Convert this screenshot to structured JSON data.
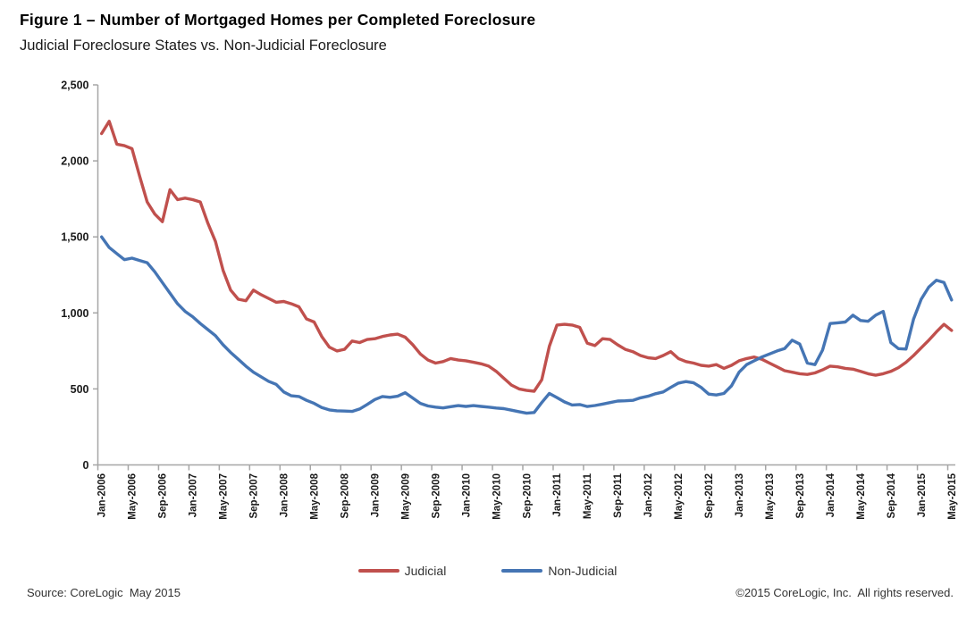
{
  "figure": {
    "title": "Figure 1 – Number of Mortgaged Homes per Completed Foreclosure",
    "subtitle": "Judicial Foreclosure States vs. Non-Judicial Foreclosure"
  },
  "footer": {
    "source": "Source: CoreLogic  May 2015",
    "copyright": "©2015 CoreLogic, Inc.  All rights reserved."
  },
  "chart_data": {
    "type": "line",
    "title": "Figure 1 – Number of Mortgaged Homes per Completed Foreclosure",
    "subtitle": "Judicial Foreclosure States vs. Non-Judicial Foreclosure",
    "xlabel": "",
    "ylabel": "",
    "ylim": [
      0,
      2500
    ],
    "y_tick_values": [
      0,
      500,
      1000,
      1500,
      2000,
      2500
    ],
    "y_tick_labels": [
      "0",
      "500",
      "1,000",
      "1,500",
      "2,000",
      "2,500"
    ],
    "x_tick_every_months": 4,
    "x_tick_labels": [
      "Jan-2006",
      "May-2006",
      "Sep-2006",
      "Jan-2007",
      "May-2007",
      "Sep-2007",
      "Jan-2008",
      "May-2008",
      "Sep-2008",
      "Jan-2009",
      "May-2009",
      "Sep-2009",
      "Jan-2010",
      "May-2010",
      "Sep-2010",
      "Jan-2011",
      "May-2011",
      "Sep-2011",
      "Jan-2012",
      "May-2012",
      "Sep-2012",
      "Jan-2013",
      "May-2013",
      "Sep-2013",
      "Jan-2014",
      "May-2014",
      "Sep-2014",
      "Jan-2015",
      "May-2015"
    ],
    "grid": false,
    "legend_position": "bottom-center",
    "axis_color": "#a6a6a6",
    "tick_label_color": "#1a1a1a",
    "categories": [
      "Jan-2006",
      "Feb-2006",
      "Mar-2006",
      "Apr-2006",
      "May-2006",
      "Jun-2006",
      "Jul-2006",
      "Aug-2006",
      "Sep-2006",
      "Oct-2006",
      "Nov-2006",
      "Dec-2006",
      "Jan-2007",
      "Feb-2007",
      "Mar-2007",
      "Apr-2007",
      "May-2007",
      "Jun-2007",
      "Jul-2007",
      "Aug-2007",
      "Sep-2007",
      "Oct-2007",
      "Nov-2007",
      "Dec-2007",
      "Jan-2008",
      "Feb-2008",
      "Mar-2008",
      "Apr-2008",
      "May-2008",
      "Jun-2008",
      "Jul-2008",
      "Aug-2008",
      "Sep-2008",
      "Oct-2008",
      "Nov-2008",
      "Dec-2008",
      "Jan-2009",
      "Feb-2009",
      "Mar-2009",
      "Apr-2009",
      "May-2009",
      "Jun-2009",
      "Jul-2009",
      "Aug-2009",
      "Sep-2009",
      "Oct-2009",
      "Nov-2009",
      "Dec-2009",
      "Jan-2010",
      "Feb-2010",
      "Mar-2010",
      "Apr-2010",
      "May-2010",
      "Jun-2010",
      "Jul-2010",
      "Aug-2010",
      "Sep-2010",
      "Oct-2010",
      "Nov-2010",
      "Dec-2010",
      "Jan-2011",
      "Feb-2011",
      "Mar-2011",
      "Apr-2011",
      "May-2011",
      "Jun-2011",
      "Jul-2011",
      "Aug-2011",
      "Sep-2011",
      "Oct-2011",
      "Nov-2011",
      "Dec-2011",
      "Jan-2012",
      "Feb-2012",
      "Mar-2012",
      "Apr-2012",
      "May-2012",
      "Jun-2012",
      "Jul-2012",
      "Aug-2012",
      "Sep-2012",
      "Oct-2012",
      "Nov-2012",
      "Dec-2012",
      "Jan-2013",
      "Feb-2013",
      "Mar-2013",
      "Apr-2013",
      "May-2013",
      "Jun-2013",
      "Jul-2013",
      "Aug-2013",
      "Sep-2013",
      "Oct-2013",
      "Nov-2013",
      "Dec-2013",
      "Jan-2014",
      "Feb-2014",
      "Mar-2014",
      "Apr-2014",
      "May-2014",
      "Jun-2014",
      "Jul-2014",
      "Aug-2014",
      "Sep-2014",
      "Oct-2014",
      "Nov-2014",
      "Dec-2014",
      "Jan-2015",
      "Feb-2015",
      "Mar-2015",
      "Apr-2015",
      "May-2015"
    ],
    "series": [
      {
        "name": "Judicial",
        "color": "#c0504d",
        "values": [
          2180,
          2260,
          2110,
          2100,
          2080,
          1900,
          1730,
          1650,
          1600,
          1810,
          1745,
          1755,
          1745,
          1730,
          1590,
          1470,
          1280,
          1150,
          1090,
          1080,
          1150,
          1120,
          1095,
          1070,
          1075,
          1060,
          1040,
          960,
          940,
          845,
          775,
          750,
          760,
          815,
          805,
          825,
          830,
          845,
          855,
          860,
          840,
          790,
          730,
          690,
          670,
          680,
          700,
          690,
          685,
          675,
          665,
          650,
          615,
          570,
          525,
          500,
          490,
          485,
          560,
          780,
          920,
          925,
          920,
          905,
          800,
          785,
          830,
          825,
          790,
          760,
          745,
          720,
          705,
          700,
          720,
          745,
          700,
          680,
          670,
          655,
          650,
          660,
          635,
          655,
          685,
          700,
          710,
          695,
          670,
          645,
          620,
          610,
          600,
          595,
          605,
          625,
          650,
          645,
          635,
          630,
          615,
          600,
          590,
          600,
          615,
          640,
          675,
          720,
          770,
          820,
          875,
          925,
          885
        ]
      },
      {
        "name": "Non-Judicial",
        "color": "#4575b4",
        "values": [
          1500,
          1430,
          1390,
          1350,
          1360,
          1345,
          1330,
          1270,
          1200,
          1130,
          1060,
          1010,
          975,
          930,
          890,
          850,
          790,
          740,
          695,
          650,
          610,
          580,
          550,
          530,
          480,
          455,
          450,
          425,
          405,
          378,
          362,
          356,
          354,
          352,
          368,
          398,
          430,
          450,
          445,
          452,
          475,
          440,
          405,
          388,
          380,
          375,
          383,
          390,
          385,
          390,
          385,
          380,
          374,
          370,
          360,
          350,
          340,
          345,
          410,
          470,
          443,
          414,
          394,
          397,
          384,
          391,
          400,
          410,
          420,
          422,
          425,
          441,
          452,
          468,
          480,
          510,
          538,
          548,
          540,
          510,
          466,
          460,
          470,
          520,
          610,
          660,
          685,
          710,
          730,
          750,
          765,
          820,
          795,
          670,
          660,
          755,
          930,
          935,
          940,
          985,
          950,
          945,
          985,
          1010,
          805,
          765,
          762,
          960,
          1090,
          1170,
          1215,
          1200,
          1085
        ]
      }
    ]
  }
}
